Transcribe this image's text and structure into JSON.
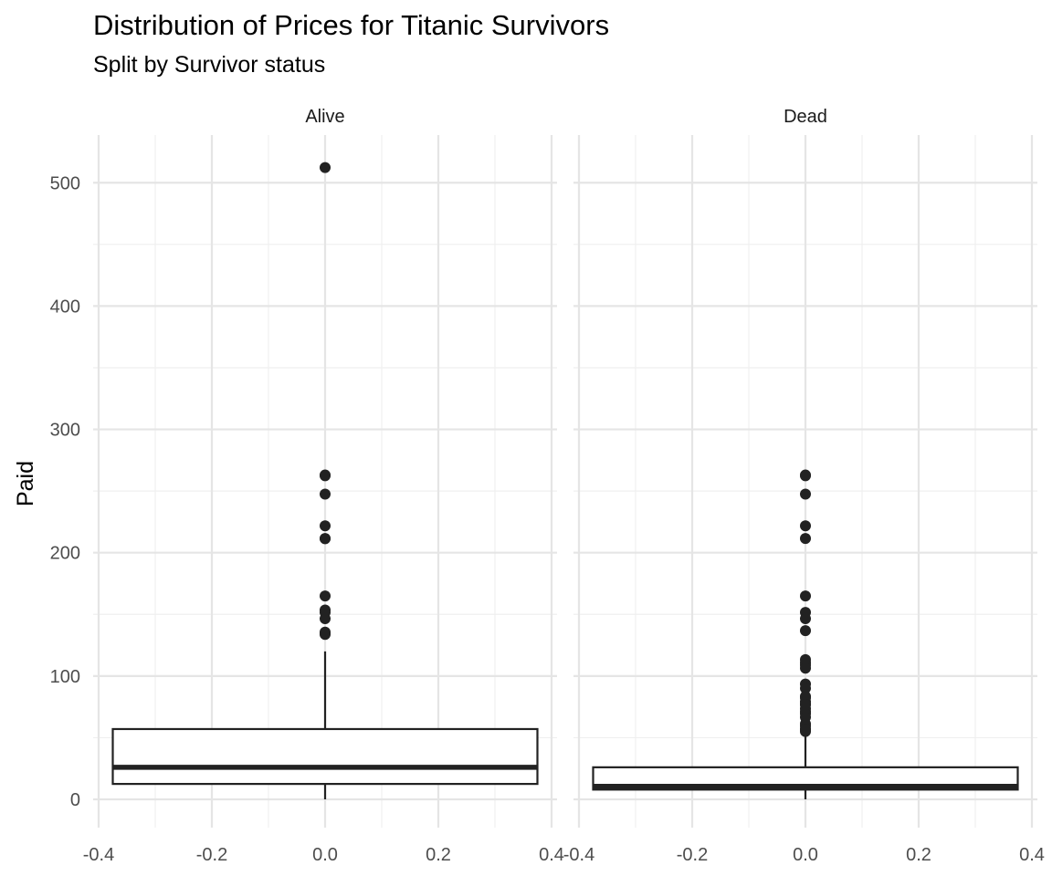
{
  "chart_data": {
    "type": "boxplot",
    "title": "Distribution of Prices for Titanic Survivors",
    "subtitle": "Split by Survivor status",
    "xlabel": "",
    "ylabel": "Paid",
    "xlim": [
      -0.4,
      0.4
    ],
    "ylim": [
      0,
      520
    ],
    "x_ticks": [
      -0.4,
      -0.2,
      0.0,
      0.2,
      0.4
    ],
    "x_tick_labels": [
      "-0.4",
      "-0.2",
      "0.0",
      "0.2",
      "0.4"
    ],
    "y_ticks": [
      0,
      100,
      200,
      300,
      400,
      500
    ],
    "y_tick_labels": [
      "0",
      "100",
      "200",
      "300",
      "400",
      "500"
    ],
    "grid": true,
    "box_color": "#222222",
    "panels": [
      {
        "label": "Alive",
        "box": {
          "xmin": -0.375,
          "xmax": 0.375,
          "q1": 12.5,
          "median": 26,
          "q3": 57,
          "whisker_low": 0,
          "whisker_high": 120
        },
        "outliers": [
          512.3,
          263,
          262.4,
          247.5,
          221.8,
          211.5,
          211.3,
          164.9,
          153.5,
          151.6,
          146.5,
          135.6,
          134.5,
          133.7
        ]
      },
      {
        "label": "Dead",
        "box": {
          "xmin": -0.375,
          "xmax": 0.375,
          "q1": 7.9,
          "median": 10.5,
          "q3": 26,
          "whisker_low": 0,
          "whisker_high": 52
        },
        "outliers": [
          263,
          262.4,
          247.5,
          221.8,
          211.5,
          164.9,
          151.6,
          146.5,
          136.8,
          113.3,
          110.9,
          108.9,
          106.4,
          93.5,
          90,
          83.5,
          82.2,
          79.2,
          77.3,
          76.7,
          73.5,
          71,
          69.5,
          66.6,
          61.2,
          59.4,
          57,
          56.5,
          55
        ]
      }
    ]
  }
}
